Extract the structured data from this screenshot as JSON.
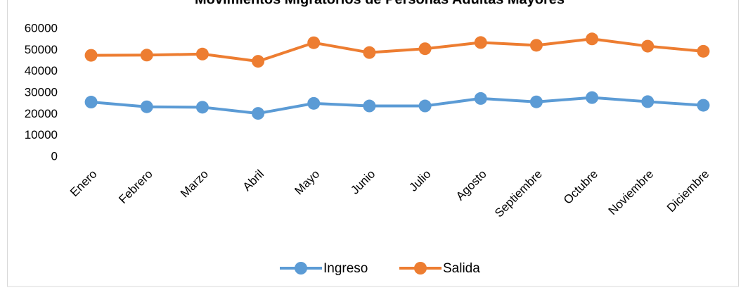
{
  "chart_data": {
    "type": "line",
    "title": "Movimientos Migratorios de Personas Adultas Mayores",
    "categories": [
      "Enero",
      "Febrero",
      "Marzo",
      "Abril",
      "Mayo",
      "Junio",
      "Julio",
      "Agosto",
      "Septiembre",
      "Octubre",
      "Noviembre",
      "Diciembre"
    ],
    "series": [
      {
        "name": "Ingreso",
        "color": "#5b9bd5",
        "values": [
          25700,
          23500,
          23300,
          20400,
          25100,
          23900,
          23900,
          27400,
          25800,
          27800,
          25900,
          24200
        ]
      },
      {
        "name": "Salida",
        "color": "#ed7d31",
        "values": [
          47600,
          47700,
          48200,
          44800,
          53500,
          48900,
          50700,
          53600,
          52300,
          55300,
          51900,
          49500
        ]
      }
    ],
    "ylim": [
      0,
      60000
    ],
    "yticks": [
      0,
      10000,
      20000,
      30000,
      40000,
      50000,
      60000
    ],
    "legend": "bottom"
  }
}
